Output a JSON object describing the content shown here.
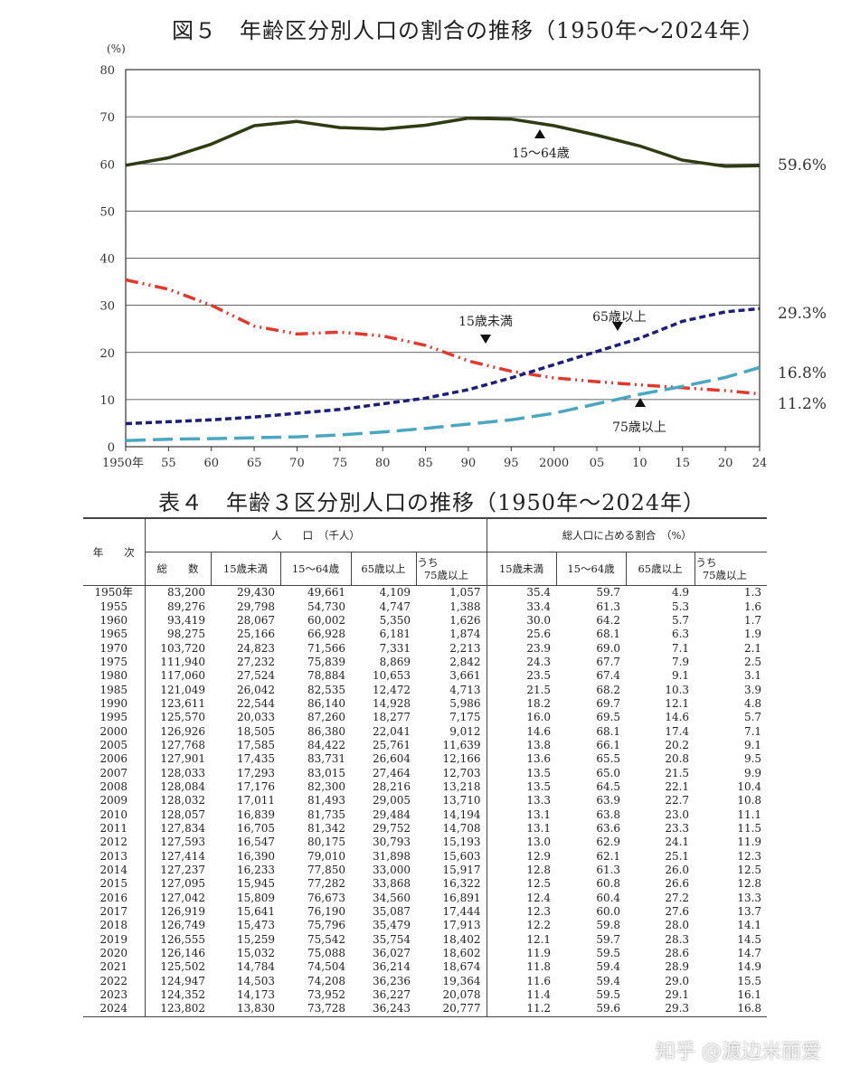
{
  "figure_title": "図５　年齢区分別人口の割合の推移（1950年～2024年）",
  "table_title": "表４　年齢３区分別人口の推移（1950年～2024年）",
  "watermark": "知乎 @渡边米丽爱",
  "chart_data": {
    "type": "line",
    "title": "図５　年齢区分別人口の割合の推移（1950年～2024年）",
    "ylabel": "(%)",
    "ylim": [
      0,
      80
    ],
    "yticks": [
      0,
      10,
      20,
      30,
      40,
      50,
      60,
      70,
      80
    ],
    "xlim": [
      1950,
      2024
    ],
    "xticks": [
      {
        "v": 1950,
        "l": "1950年"
      },
      {
        "v": 1955,
        "l": "55"
      },
      {
        "v": 1960,
        "l": "60"
      },
      {
        "v": 1965,
        "l": "65"
      },
      {
        "v": 1970,
        "l": "70"
      },
      {
        "v": 1975,
        "l": "75"
      },
      {
        "v": 1980,
        "l": "80"
      },
      {
        "v": 1985,
        "l": "85"
      },
      {
        "v": 1990,
        "l": "90"
      },
      {
        "v": 1995,
        "l": "95"
      },
      {
        "v": 2000,
        "l": "2000"
      },
      {
        "v": 2005,
        "l": "05"
      },
      {
        "v": 2010,
        "l": "10"
      },
      {
        "v": 2015,
        "l": "15"
      },
      {
        "v": 2020,
        "l": "20"
      },
      {
        "v": 2024,
        "l": "24"
      }
    ],
    "grid": true,
    "x": [
      1950,
      1955,
      1960,
      1965,
      1970,
      1975,
      1980,
      1985,
      1990,
      1995,
      2000,
      2005,
      2010,
      2015,
      2020,
      2024
    ],
    "series": [
      {
        "name": "15～64歳",
        "color": "#2f3b12",
        "values": [
          59.7,
          61.3,
          64.2,
          68.1,
          69.0,
          67.7,
          67.4,
          68.2,
          69.7,
          69.5,
          68.1,
          66.1,
          63.8,
          60.8,
          59.5,
          59.6
        ],
        "end_label": "59.6%"
      },
      {
        "name": "15歳未満",
        "color": "#e03a2e",
        "values": [
          35.4,
          33.4,
          30.0,
          25.6,
          23.9,
          24.3,
          23.5,
          21.5,
          18.2,
          16.0,
          14.6,
          13.8,
          13.1,
          12.5,
          11.9,
          11.2
        ],
        "end_label": "11.2%"
      },
      {
        "name": "65歳以上",
        "color": "#1c1f78",
        "values": [
          4.9,
          5.3,
          5.7,
          6.3,
          7.1,
          7.9,
          9.1,
          10.3,
          12.1,
          14.6,
          17.4,
          20.2,
          23.0,
          26.6,
          28.6,
          29.3
        ],
        "end_label": "29.3%"
      },
      {
        "name": "75歳以上",
        "color": "#4aa7bf",
        "values": [
          1.3,
          1.6,
          1.7,
          1.9,
          2.1,
          2.5,
          3.1,
          3.9,
          4.8,
          5.7,
          7.1,
          9.1,
          11.1,
          12.8,
          14.7,
          16.8
        ],
        "end_label": "16.8%"
      }
    ]
  },
  "table": {
    "year_header": "年　　次",
    "group1": "人　　口　（千人）",
    "group2": "総人口に占める割合　（%）",
    "cols1": [
      "総　　数",
      "15歳未満",
      "15～64歳",
      "65歳以上"
    ],
    "u75a": "うち",
    "u75b": "75歳以上",
    "cols2": [
      "15歳未満",
      "15～64歳",
      "65歳以上"
    ],
    "rows": [
      [
        "1950年",
        "83,200",
        "29,430",
        "49,661",
        "4,109",
        "1,057",
        "35.4",
        "59.7",
        "4.9",
        "1.3"
      ],
      [
        "1955",
        "89,276",
        "29,798",
        "54,730",
        "4,747",
        "1,388",
        "33.4",
        "61.3",
        "5.3",
        "1.6"
      ],
      [
        "1960",
        "93,419",
        "28,067",
        "60,002",
        "5,350",
        "1,626",
        "30.0",
        "64.2",
        "5.7",
        "1.7"
      ],
      [
        "1965",
        "98,275",
        "25,166",
        "66,928",
        "6,181",
        "1,874",
        "25.6",
        "68.1",
        "6.3",
        "1.9"
      ],
      [
        "1970",
        "103,720",
        "24,823",
        "71,566",
        "7,331",
        "2,213",
        "23.9",
        "69.0",
        "7.1",
        "2.1"
      ],
      [
        "1975",
        "111,940",
        "27,232",
        "75,839",
        "8,869",
        "2,842",
        "24.3",
        "67.7",
        "7.9",
        "2.5"
      ],
      [
        "1980",
        "117,060",
        "27,524",
        "78,884",
        "10,653",
        "3,661",
        "23.5",
        "67.4",
        "9.1",
        "3.1"
      ],
      [
        "1985",
        "121,049",
        "26,042",
        "82,535",
        "12,472",
        "4,713",
        "21.5",
        "68.2",
        "10.3",
        "3.9"
      ],
      [
        "1990",
        "123,611",
        "22,544",
        "86,140",
        "14,928",
        "5,986",
        "18.2",
        "69.7",
        "12.1",
        "4.8"
      ],
      [
        "1995",
        "125,570",
        "20,033",
        "87,260",
        "18,277",
        "7,175",
        "16.0",
        "69.5",
        "14.6",
        "5.7"
      ],
      [
        "2000",
        "126,926",
        "18,505",
        "86,380",
        "22,041",
        "9,012",
        "14.6",
        "68.1",
        "17.4",
        "7.1"
      ],
      [
        "2005",
        "127,768",
        "17,585",
        "84,422",
        "25,761",
        "11,639",
        "13.8",
        "66.1",
        "20.2",
        "9.1"
      ],
      [
        "2006",
        "127,901",
        "17,435",
        "83,731",
        "26,604",
        "12,166",
        "13.6",
        "65.5",
        "20.8",
        "9.5"
      ],
      [
        "2007",
        "128,033",
        "17,293",
        "83,015",
        "27,464",
        "12,703",
        "13.5",
        "65.0",
        "21.5",
        "9.9"
      ],
      [
        "2008",
        "128,084",
        "17,176",
        "82,300",
        "28,216",
        "13,218",
        "13.5",
        "64.5",
        "22.1",
        "10.4"
      ],
      [
        "2009",
        "128,032",
        "17,011",
        "81,493",
        "29,005",
        "13,710",
        "13.3",
        "63.9",
        "22.7",
        "10.8"
      ],
      [
        "2010",
        "128,057",
        "16,839",
        "81,735",
        "29,484",
        "14,194",
        "13.1",
        "63.8",
        "23.0",
        "11.1"
      ],
      [
        "2011",
        "127,834",
        "16,705",
        "81,342",
        "29,752",
        "14,708",
        "13.1",
        "63.6",
        "23.3",
        "11.5"
      ],
      [
        "2012",
        "127,593",
        "16,547",
        "80,175",
        "30,793",
        "15,193",
        "13.0",
        "62.9",
        "24.1",
        "11.9"
      ],
      [
        "2013",
        "127,414",
        "16,390",
        "79,010",
        "31,898",
        "15,603",
        "12.9",
        "62.1",
        "25.1",
        "12.3"
      ],
      [
        "2014",
        "127,237",
        "16,233",
        "77,850",
        "33,000",
        "15,917",
        "12.8",
        "61.3",
        "26.0",
        "12.5"
      ],
      [
        "2015",
        "127,095",
        "15,945",
        "77,282",
        "33,868",
        "16,322",
        "12.5",
        "60.8",
        "26.6",
        "12.8"
      ],
      [
        "2016",
        "127,042",
        "15,809",
        "76,673",
        "34,560",
        "16,891",
        "12.4",
        "60.4",
        "27.2",
        "13.3"
      ],
      [
        "2017",
        "126,919",
        "15,641",
        "76,190",
        "35,087",
        "17,444",
        "12.3",
        "60.0",
        "27.6",
        "13.7"
      ],
      [
        "2018",
        "126,749",
        "15,473",
        "75,796",
        "35,479",
        "17,913",
        "12.2",
        "59.8",
        "28.0",
        "14.1"
      ],
      [
        "2019",
        "126,555",
        "15,259",
        "75,542",
        "35,754",
        "18,402",
        "12.1",
        "59.7",
        "28.3",
        "14.5"
      ],
      [
        "2020",
        "126,146",
        "15,032",
        "75,088",
        "36,027",
        "18,602",
        "11.9",
        "59.5",
        "28.6",
        "14.7"
      ],
      [
        "2021",
        "125,502",
        "14,784",
        "74,504",
        "36,214",
        "18,674",
        "11.8",
        "59.4",
        "28.9",
        "14.9"
      ],
      [
        "2022",
        "124,947",
        "14,503",
        "74,208",
        "36,236",
        "19,364",
        "11.6",
        "59.4",
        "29.0",
        "15.5"
      ],
      [
        "2023",
        "124,352",
        "14,173",
        "73,952",
        "36,227",
        "20,078",
        "11.4",
        "59.5",
        "29.1",
        "16.1"
      ],
      [
        "2024",
        "123,802",
        "13,830",
        "73,728",
        "36,243",
        "20,777",
        "11.2",
        "59.6",
        "29.3",
        "16.8"
      ]
    ]
  }
}
